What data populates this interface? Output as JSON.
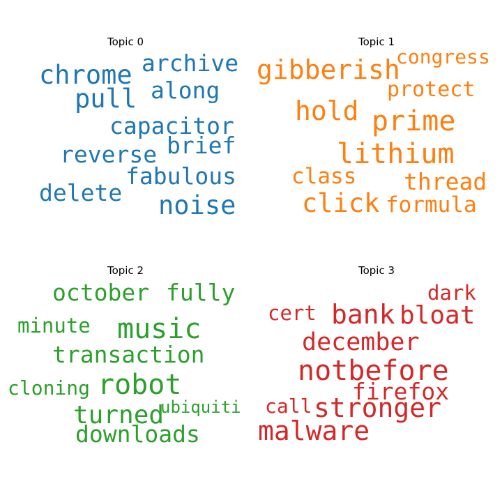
{
  "chart_data": {
    "type": "wordcloud",
    "panels": [
      {
        "title": "Topic 0",
        "color": "#1f77b4",
        "words": [
          "chrome",
          "archive",
          "pull",
          "along",
          "capacitor",
          "brief",
          "reverse",
          "fabulous",
          "delete",
          "noise"
        ]
      },
      {
        "title": "Topic 1",
        "color": "#ff7f0e",
        "words": [
          "gibberish",
          "congress",
          "protect",
          "hold",
          "prime",
          "lithium",
          "class",
          "thread",
          "click",
          "formula"
        ]
      },
      {
        "title": "Topic 2",
        "color": "#2ca02c",
        "words": [
          "october",
          "fully",
          "minute",
          "music",
          "transaction",
          "cloning",
          "robot",
          "turned",
          "ubiquiti",
          "downloads"
        ]
      },
      {
        "title": "Topic 3",
        "color": "#d62728",
        "words": [
          "dark",
          "cert",
          "bank",
          "bloat",
          "december",
          "notbefore",
          "firefox",
          "call",
          "stronger",
          "malware"
        ]
      }
    ]
  }
}
